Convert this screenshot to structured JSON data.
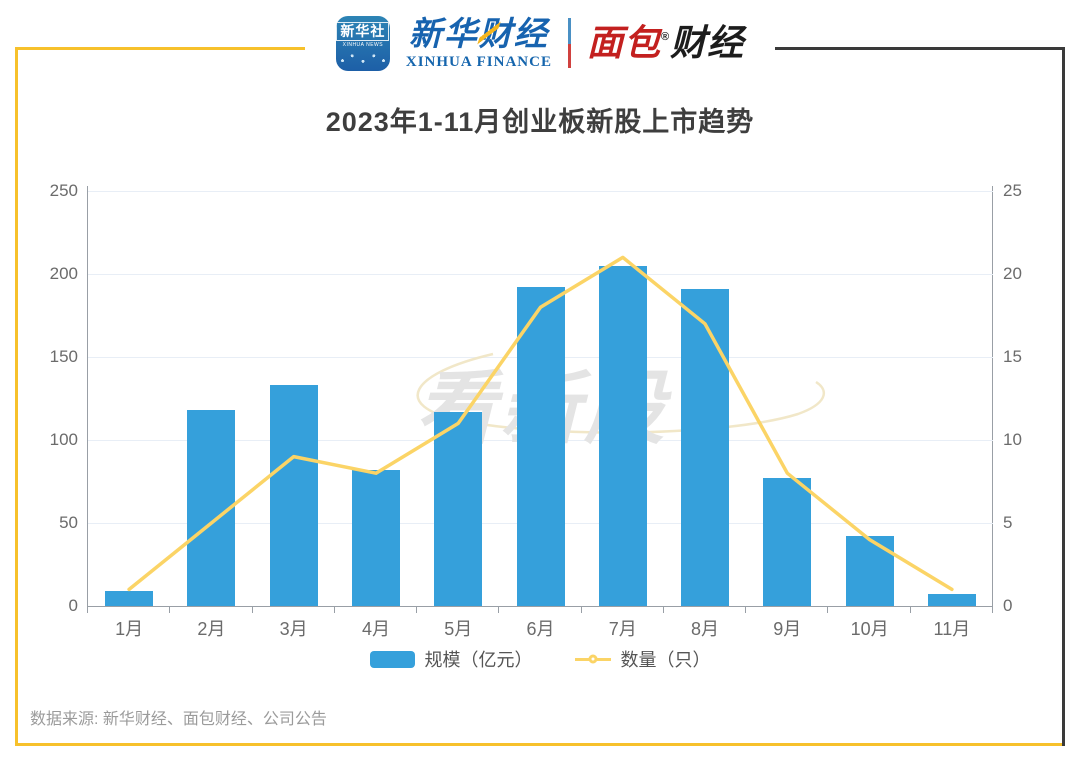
{
  "header": {
    "app_icon": {
      "line1": "新华社",
      "line2": "XINHUA NEWS"
    },
    "xinhua_finance": {
      "cn": "新华财经",
      "en": "XINHUA FINANCE"
    },
    "mianbao": {
      "cn_red": "面包",
      "cn_dark": "财经",
      "reg": "®"
    }
  },
  "title": "2023年1-11月创业板新股上市趋势",
  "watermark": "看新股",
  "legend": [
    {
      "label": "规模（亿元）",
      "type": "bar",
      "color": "#35A0DB"
    },
    {
      "label": "数量（只）",
      "type": "line",
      "color": "#FBD466"
    }
  ],
  "footer": {
    "source": "数据来源: 新华财经、面包财经、公司公告"
  },
  "colors": {
    "bar": "#35A0DB",
    "line": "#FBD466",
    "frame_yellow": "#F7C12B",
    "frame_dark": "#3a3a3a",
    "grid": "#e8eef6",
    "axis": "#999fa6"
  },
  "chart_data": {
    "type": "bar",
    "subtype": "bar+line dual-axis combo",
    "title": "2023年1-11月创业板新股上市趋势",
    "categories": [
      "1月",
      "2月",
      "3月",
      "4月",
      "5月",
      "6月",
      "7月",
      "8月",
      "9月",
      "10月",
      "11月"
    ],
    "series": [
      {
        "name": "规模（亿元）",
        "type": "bar",
        "axis": "left",
        "color": "#35A0DB",
        "values": [
          9,
          118,
          133,
          82,
          117,
          192,
          205,
          191,
          77,
          42,
          7
        ]
      },
      {
        "name": "数量（只）",
        "type": "line",
        "axis": "right",
        "color": "#FBD466",
        "values": [
          1,
          5,
          9,
          8,
          11,
          18,
          21,
          17,
          8,
          4,
          1
        ]
      }
    ],
    "left_axis": {
      "ticks": [
        250,
        200,
        150,
        100,
        50,
        0
      ],
      "max": 250,
      "min": 0
    },
    "right_axis": {
      "ticks": [
        25,
        20,
        15,
        10,
        5,
        0
      ],
      "max": 25,
      "min": 0
    },
    "grid": true,
    "legend_position": "bottom"
  }
}
